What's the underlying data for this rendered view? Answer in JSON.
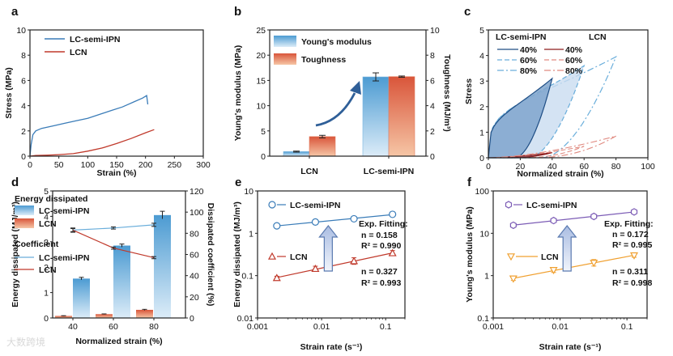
{
  "panel_labels": [
    "a",
    "b",
    "c",
    "d",
    "e",
    "f"
  ],
  "watermark": "大数跨境",
  "colors": {
    "blue": "#3a7cb8",
    "red": "#c0392b",
    "lightblue": "#6aaedb",
    "orange": "#e8855a",
    "lightred": "#e08a80",
    "purple": "#7b5bb5",
    "yellow": "#f0a030",
    "arrowfill": "#c8d4ea",
    "arrowstroke": "#5a7ab0"
  },
  "chart_data": [
    {
      "id": "a",
      "type": "line",
      "xlabel": "Strain (%)",
      "ylabel": "Stress (MPa)",
      "xlim": [
        0,
        300
      ],
      "ylim": [
        0,
        10
      ],
      "xticks": [
        "0",
        "50",
        "100",
        "150",
        "200",
        "250",
        "300"
      ],
      "yticks": [
        "0",
        "2",
        "4",
        "6",
        "8",
        "10"
      ],
      "series": [
        {
          "name": "LC-semi-IPN",
          "color": "blue",
          "x": [
            0,
            2,
            5,
            10,
            20,
            40,
            60,
            80,
            100,
            120,
            140,
            160,
            180,
            195,
            202,
            204
          ],
          "y": [
            0,
            0.9,
            1.7,
            2.0,
            2.2,
            2.4,
            2.6,
            2.8,
            3.0,
            3.3,
            3.6,
            3.9,
            4.3,
            4.6,
            4.8,
            4.1
          ]
        },
        {
          "name": "LCN",
          "color": "red",
          "x": [
            0,
            10,
            30,
            50,
            75,
            100,
            125,
            150,
            175,
            200,
            215
          ],
          "y": [
            0,
            0.05,
            0.08,
            0.12,
            0.2,
            0.4,
            0.65,
            1.0,
            1.4,
            1.85,
            2.1
          ]
        }
      ]
    },
    {
      "id": "b",
      "type": "bar",
      "categories": [
        "LCN",
        "LC-semi-IPN"
      ],
      "ylabel_left": "Young's modulus (MPa)",
      "ylabel_right": "Toughness (MJ/m³)",
      "ylim_left": [
        0,
        25
      ],
      "ylim_right": [
        0,
        10
      ],
      "yticks_left": [
        "0",
        "5",
        "10",
        "15",
        "20",
        "25"
      ],
      "yticks_right": [
        "0",
        "2",
        "4",
        "6",
        "8",
        "10"
      ],
      "series": [
        {
          "name": "Young's modulus",
          "axis": "left",
          "values": [
            0.9,
            15.7
          ],
          "errors": [
            0.1,
            0.8
          ]
        },
        {
          "name": "Toughness",
          "axis": "right",
          "values": [
            1.55,
            6.3
          ],
          "errors": [
            0.1,
            0.05
          ]
        }
      ]
    },
    {
      "id": "c",
      "type": "line",
      "xlabel": "Normalized strain (%)",
      "ylabel": "Stress",
      "xlim": [
        0,
        100
      ],
      "ylim": [
        0,
        5
      ],
      "xticks": [
        "0",
        "20",
        "40",
        "60",
        "80",
        "100"
      ],
      "yticks": [
        "0",
        "1",
        "2",
        "3",
        "4",
        "5"
      ],
      "legend_headers": [
        "LC-semi-IPN",
        "LCN"
      ],
      "legend_rows": [
        "40%",
        "60%",
        "80%"
      ],
      "loops": [
        {
          "material": "LC-semi-IPN",
          "strain": 40,
          "peak": 3.1
        },
        {
          "material": "LC-semi-IPN",
          "strain": 60,
          "peak": 3.6
        },
        {
          "material": "LC-semi-IPN",
          "strain": 80,
          "peak": 3.95
        },
        {
          "material": "LCN",
          "strain": 40,
          "peak": 0.2
        },
        {
          "material": "LCN",
          "strain": 60,
          "peak": 0.45
        },
        {
          "material": "LCN",
          "strain": 80,
          "peak": 0.85
        }
      ]
    },
    {
      "id": "d",
      "type": "bar",
      "xlabel": "Normalized strain (%)",
      "ylabel_left": "Energy dissipated (MJ/m³)",
      "ylabel_right": "Dissipated coefficient (%)",
      "categories": [
        "40",
        "60",
        "80"
      ],
      "ylim_left": [
        0,
        5
      ],
      "ylim_right": [
        0,
        120
      ],
      "yticks_left": [
        "0",
        "1",
        "2",
        "3",
        "4",
        "5"
      ],
      "yticks_right": [
        "0",
        "20",
        "40",
        "60",
        "80",
        "100",
        "120"
      ],
      "legend_title_1": "Energy dissipated",
      "legend_title_2": "Coefficient",
      "series": [
        {
          "name": "LC-semi-IPN",
          "kind": "bar",
          "axis": "left",
          "values": [
            1.55,
            2.85,
            4.05
          ],
          "errors": [
            0.05,
            0.06,
            0.15
          ]
        },
        {
          "name": "LCN",
          "kind": "bar",
          "axis": "left",
          "values": [
            0.08,
            0.15,
            0.32
          ],
          "errors": [
            0.01,
            0.01,
            0.02
          ]
        },
        {
          "name": "LC-semi-IPN",
          "kind": "line",
          "axis": "right",
          "values": [
            83,
            85,
            88
          ],
          "errors": [
            2,
            1,
            1.5
          ]
        },
        {
          "name": "LCN",
          "kind": "line",
          "axis": "right",
          "values": [
            83,
            66,
            57
          ],
          "errors": [
            1.5,
            1,
            1
          ]
        }
      ]
    },
    {
      "id": "e",
      "type": "scatter",
      "xscale": "log",
      "yscale": "log",
      "xlabel": "Strain rate (s⁻¹)",
      "ylabel": "Energy dissipated (MJ/m³)",
      "xlim": [
        0.001,
        0.2
      ],
      "ylim": [
        0.01,
        10
      ],
      "xticks": [
        "0.001",
        "0.01",
        "0.1"
      ],
      "yticks": [
        "0.01",
        "0.1",
        "1",
        "10"
      ],
      "fit_title": "Exp. Fitting:",
      "series": [
        {
          "name": "LC-semi-IPN",
          "marker": "circle",
          "color": "blue",
          "x": [
            0.002,
            0.008,
            0.032,
            0.128
          ],
          "y": [
            1.5,
            1.85,
            2.2,
            2.8
          ],
          "errors": [
            0,
            0,
            0,
            0
          ],
          "fit_n": "n = 0.158",
          "fit_r2": "R² = 0.990"
        },
        {
          "name": "LCN",
          "marker": "triangle",
          "color": "red",
          "x": [
            0.002,
            0.008,
            0.032,
            0.128
          ],
          "y": [
            0.088,
            0.145,
            0.22,
            0.34
          ],
          "errors": [
            0.1,
            0.15,
            0.2,
            0.15
          ],
          "fit_n": "n = 0.327",
          "fit_r2": "R² = 0.993"
        }
      ]
    },
    {
      "id": "f",
      "type": "scatter",
      "xscale": "log",
      "yscale": "log",
      "xlabel": "Strain rate (s⁻¹)",
      "ylabel": "Young's modulus (MPa)",
      "xlim": [
        0.001,
        0.2
      ],
      "ylim": [
        0.1,
        100
      ],
      "xticks": [
        "0.001",
        "0.01",
        "0.1"
      ],
      "yticks": [
        "0.1",
        "1",
        "10",
        "100"
      ],
      "fit_title": "Exp. Fitting:",
      "series": [
        {
          "name": "LC-semi-IPN",
          "marker": "hexagon",
          "color": "purple",
          "x": [
            0.002,
            0.008,
            0.032,
            0.128
          ],
          "y": [
            15.5,
            20,
            25,
            32
          ],
          "errors": [
            0,
            0,
            0,
            0
          ],
          "fit_n": "n = 0.172",
          "fit_r2": "R² = 0.995"
        },
        {
          "name": "LCN",
          "marker": "tri-down",
          "color": "yellow",
          "x": [
            0.002,
            0.008,
            0.032,
            0.128
          ],
          "y": [
            0.85,
            1.35,
            2.0,
            3.0
          ],
          "errors": [
            0.12,
            0.15,
            0.2,
            0.12
          ],
          "fit_n": "n = 0.311",
          "fit_r2": "R² = 0.998"
        }
      ]
    }
  ]
}
